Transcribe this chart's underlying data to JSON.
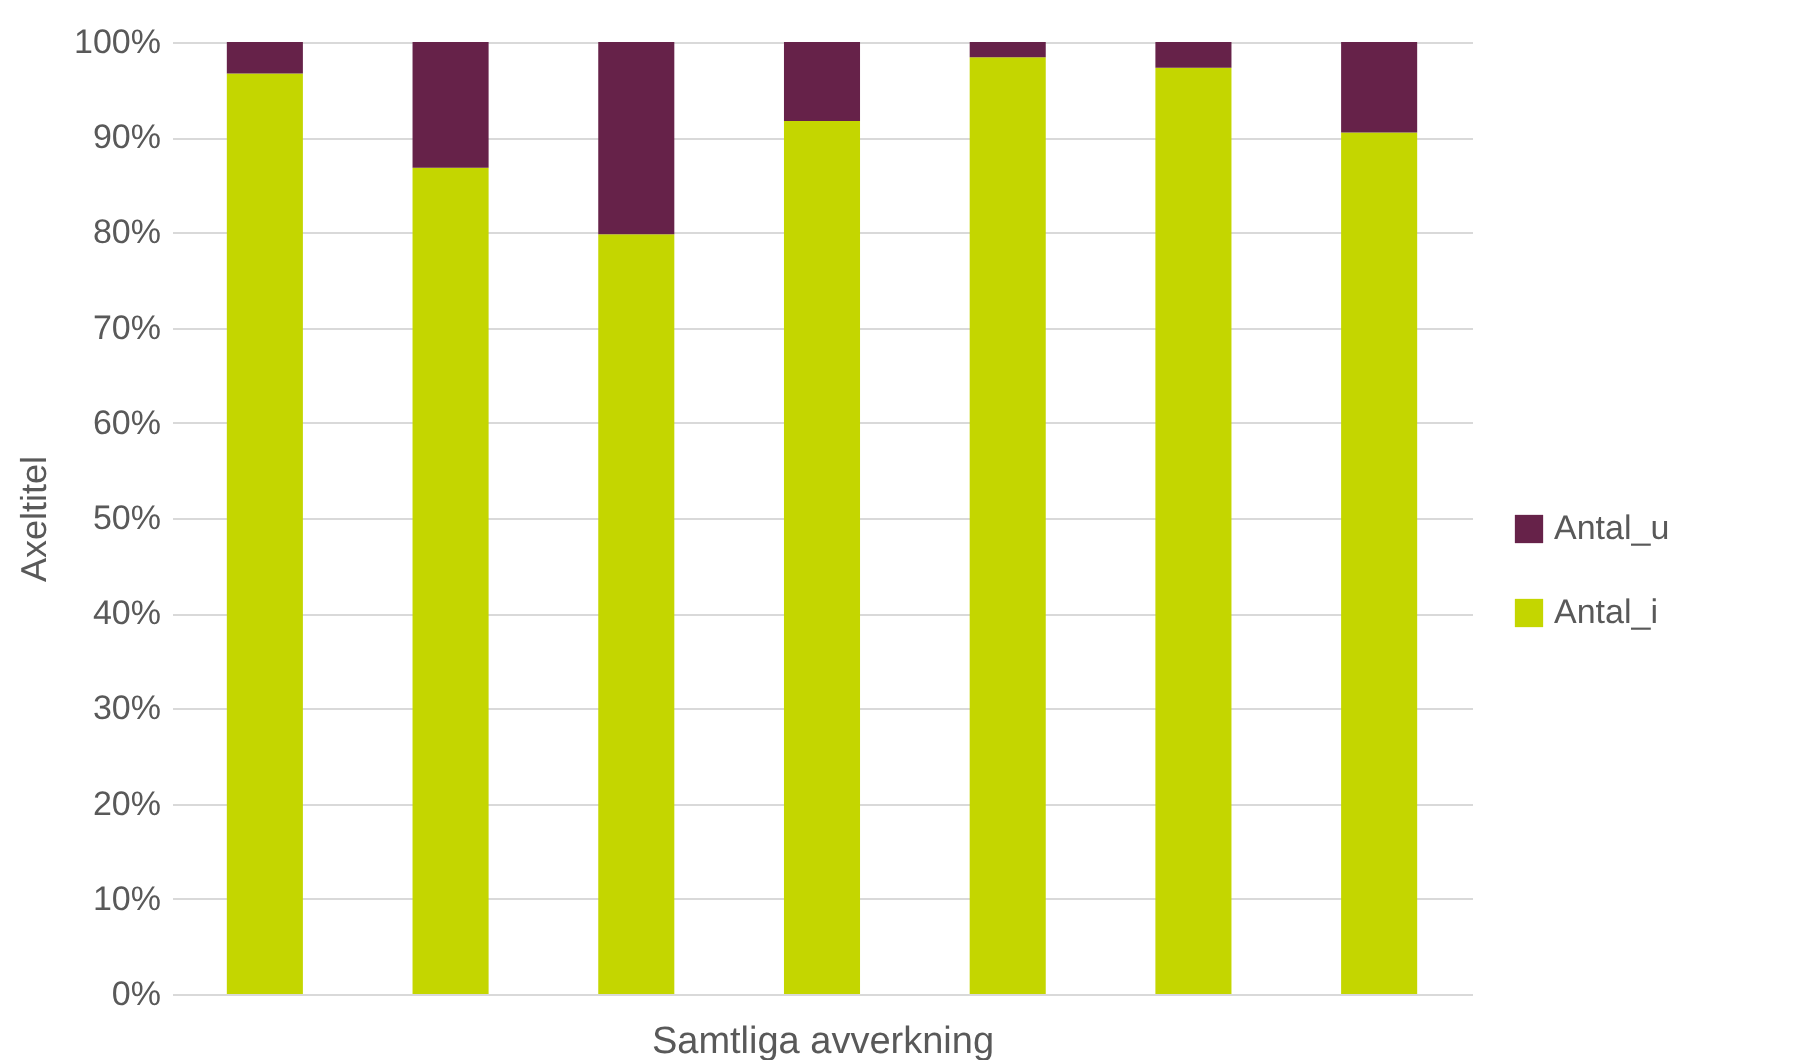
{
  "chart_data": {
    "type": "bar",
    "stacked": true,
    "xlabel": "Samtliga avverkning",
    "ylabel": "Axeltitel",
    "categories": [
      null,
      null,
      null,
      null,
      null,
      null,
      null
    ],
    "series": [
      {
        "name": "Antal_i",
        "color": "#c4d600",
        "values": [
          96.7,
          86.8,
          79.8,
          91.7,
          98.4,
          97.3,
          90.5
        ]
      },
      {
        "name": "Antal_u",
        "color": "#662249",
        "values": [
          3.3,
          13.2,
          20.2,
          8.3,
          1.6,
          2.7,
          9.5
        ]
      }
    ],
    "ylim": [
      0,
      100
    ],
    "yticks": [
      {
        "value": 0,
        "label": "0%"
      },
      {
        "value": 10,
        "label": "10%"
      },
      {
        "value": 20,
        "label": "20%"
      },
      {
        "value": 30,
        "label": "30%"
      },
      {
        "value": 40,
        "label": "40%"
      },
      {
        "value": 50,
        "label": "50%"
      },
      {
        "value": 60,
        "label": "60%"
      },
      {
        "value": 70,
        "label": "70%"
      },
      {
        "value": 80,
        "label": "80%"
      },
      {
        "value": 90,
        "label": "90%"
      },
      {
        "value": 100,
        "label": "100%"
      }
    ],
    "grid": "y",
    "legend": "right"
  }
}
